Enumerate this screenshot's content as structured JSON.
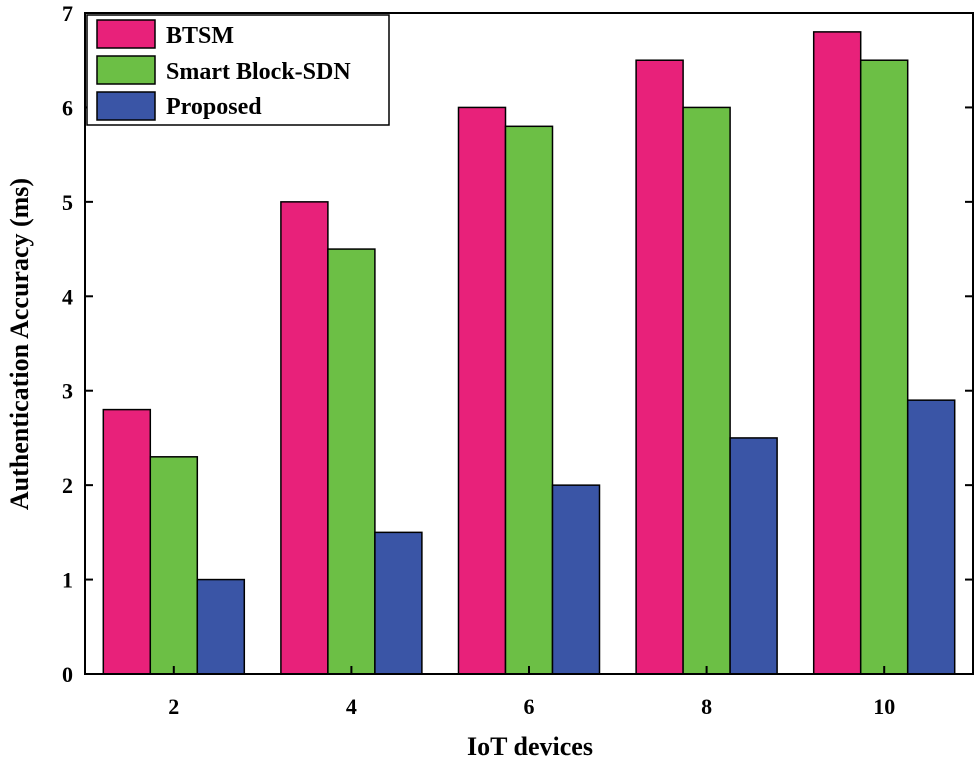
{
  "chart_data": {
    "type": "bar",
    "title": "",
    "xlabel": "IoT devices",
    "ylabel": "Authentication Accuracy (ms)",
    "categories": [
      "2",
      "4",
      "6",
      "8",
      "10"
    ],
    "ylim": [
      0,
      7
    ],
    "yticks": [
      "0",
      "1",
      "2",
      "3",
      "4",
      "5",
      "6",
      "7"
    ],
    "grid": false,
    "legend_position": "top-left",
    "series": [
      {
        "name": "BTSM",
        "color": "#E8217A",
        "values": [
          2.8,
          5.0,
          6.0,
          6.5,
          6.8
        ]
      },
      {
        "name": "Smart Block-SDN",
        "color": "#6CBF45",
        "values": [
          2.3,
          4.5,
          5.8,
          6.0,
          6.5
        ]
      },
      {
        "name": "Proposed",
        "color": "#3A55A6",
        "values": [
          1.0,
          1.5,
          2.0,
          2.5,
          2.9
        ]
      }
    ]
  }
}
